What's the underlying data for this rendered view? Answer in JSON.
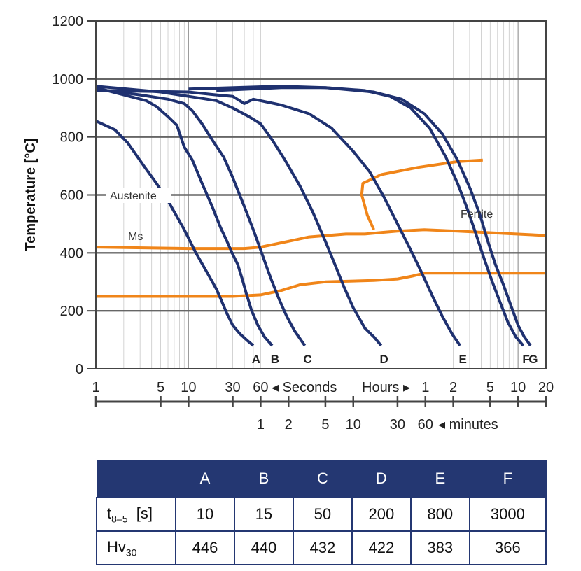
{
  "colors": {
    "cooling": "#1f3170",
    "transform": "#f08519",
    "table_header": "#243772",
    "grid": "#b8b8b8",
    "axis": "#444444"
  },
  "chart_data": {
    "type": "line",
    "ylabel": "Temperature [°C]",
    "ylim": [
      0,
      1200
    ],
    "y_ticks": [
      "0",
      "200",
      "400",
      "600",
      "800",
      "1000",
      "1200"
    ],
    "xscale": "log",
    "xlim_seconds": [
      1,
      72000
    ],
    "x_ticks_seconds": [
      "1",
      "5",
      "10",
      "30",
      "60"
    ],
    "seconds_label": "◂ Seconds",
    "hours_label": "Hours ▸",
    "x_ticks_hours": [
      "1",
      "2",
      "5",
      "10",
      "20"
    ],
    "x_ticks_minutes": [
      "1",
      "2",
      "5",
      "10",
      "30",
      "60"
    ],
    "minutes_label": "◂ minutes",
    "region_labels": [
      "Austenite",
      "Ferrite",
      "Ms"
    ],
    "grid": true,
    "cooling_curves": [
      {
        "name": "A",
        "points": [
          [
            1,
            855
          ],
          [
            1.6,
            825
          ],
          [
            2.2,
            780
          ],
          [
            3.3,
            700
          ],
          [
            4.5,
            640
          ],
          [
            6,
            580
          ],
          [
            9,
            480
          ],
          [
            12,
            400
          ],
          [
            16,
            330
          ],
          [
            20,
            275
          ],
          [
            23,
            230
          ],
          [
            26,
            190
          ],
          [
            30,
            150
          ],
          [
            36,
            120
          ],
          [
            44,
            95
          ],
          [
            50,
            80
          ]
        ]
      },
      {
        "name": "B",
        "points": [
          [
            1,
            970
          ],
          [
            2,
            945
          ],
          [
            3.5,
            925
          ],
          [
            4.5,
            905
          ],
          [
            6,
            870
          ],
          [
            7.5,
            840
          ],
          [
            9,
            765
          ],
          [
            11,
            720
          ],
          [
            14,
            640
          ],
          [
            18,
            560
          ],
          [
            22,
            490
          ],
          [
            26,
            440
          ],
          [
            30,
            395
          ],
          [
            34,
            360
          ],
          [
            38,
            310
          ],
          [
            42,
            260
          ],
          [
            48,
            200
          ],
          [
            56,
            150
          ],
          [
            66,
            110
          ],
          [
            80,
            80
          ]
        ]
      },
      {
        "name": "C",
        "points": [
          [
            1,
            965
          ],
          [
            3,
            945
          ],
          [
            6,
            930
          ],
          [
            9,
            915
          ],
          [
            11,
            890
          ],
          [
            14,
            845
          ],
          [
            18,
            790
          ],
          [
            24,
            730
          ],
          [
            30,
            660
          ],
          [
            40,
            560
          ],
          [
            50,
            480
          ],
          [
            60,
            410
          ],
          [
            70,
            350
          ],
          [
            80,
            300
          ],
          [
            95,
            240
          ],
          [
            115,
            180
          ],
          [
            140,
            130
          ],
          [
            180,
            80
          ]
        ]
      },
      {
        "name": "D",
        "points": [
          [
            1,
            975
          ],
          [
            5,
            955
          ],
          [
            10,
            940
          ],
          [
            20,
            925
          ],
          [
            30,
            900
          ],
          [
            45,
            870
          ],
          [
            60,
            845
          ],
          [
            80,
            790
          ],
          [
            110,
            720
          ],
          [
            160,
            630
          ],
          [
            220,
            540
          ],
          [
            300,
            440
          ],
          [
            380,
            360
          ],
          [
            480,
            280
          ],
          [
            600,
            210
          ],
          [
            800,
            140
          ],
          [
            1000,
            110
          ],
          [
            1200,
            80
          ]
        ]
      },
      {
        "name": "E",
        "points": [
          [
            1,
            960
          ],
          [
            10,
            955
          ],
          [
            20,
            945
          ],
          [
            30,
            940
          ],
          [
            40,
            915
          ],
          [
            50,
            930
          ],
          [
            60,
            925
          ],
          [
            100,
            910
          ],
          [
            200,
            880
          ],
          [
            350,
            830
          ],
          [
            600,
            750
          ],
          [
            900,
            680
          ],
          [
            1300,
            590
          ],
          [
            1800,
            500
          ],
          [
            2500,
            410
          ],
          [
            3300,
            330
          ],
          [
            4300,
            250
          ],
          [
            5500,
            180
          ],
          [
            7000,
            120
          ],
          [
            8500,
            80
          ]
        ]
      },
      {
        "name": "F",
        "points": [
          [
            10,
            965
          ],
          [
            100,
            975
          ],
          [
            300,
            970
          ],
          [
            800,
            960
          ],
          [
            1500,
            940
          ],
          [
            2500,
            900
          ],
          [
            4000,
            830
          ],
          [
            6000,
            730
          ],
          [
            8000,
            640
          ],
          [
            10000,
            560
          ],
          [
            12500,
            470
          ],
          [
            15500,
            380
          ],
          [
            19000,
            300
          ],
          [
            23000,
            230
          ],
          [
            28000,
            160
          ],
          [
            34000,
            110
          ],
          [
            41000,
            80
          ]
        ]
      },
      {
        "name": "G",
        "points": [
          [
            20,
            960
          ],
          [
            100,
            970
          ],
          [
            300,
            970
          ],
          [
            1000,
            955
          ],
          [
            2000,
            930
          ],
          [
            3500,
            880
          ],
          [
            5500,
            810
          ],
          [
            8000,
            720
          ],
          [
            11000,
            620
          ],
          [
            14000,
            530
          ],
          [
            17000,
            440
          ],
          [
            20500,
            360
          ],
          [
            25000,
            290
          ],
          [
            30000,
            220
          ],
          [
            36000,
            150
          ],
          [
            42000,
            110
          ],
          [
            49000,
            80
          ]
        ]
      }
    ],
    "curve_labels": [
      "A",
      "B",
      "C",
      "D",
      "E",
      "F",
      "G"
    ],
    "transformation_lines": [
      {
        "points": [
          [
            1,
            420
          ],
          [
            10,
            415
          ],
          [
            40,
            415
          ],
          [
            60,
            420
          ],
          [
            120,
            440
          ],
          [
            200,
            455
          ],
          [
            500,
            465
          ],
          [
            800,
            465
          ],
          [
            1200,
            470
          ],
          [
            1800,
            475
          ],
          [
            3500,
            480
          ],
          [
            8000,
            475
          ],
          [
            72000,
            460
          ]
        ]
      },
      {
        "points": [
          [
            1,
            250
          ],
          [
            30,
            250
          ],
          [
            60,
            255
          ],
          [
            100,
            270
          ],
          [
            160,
            290
          ],
          [
            300,
            300
          ],
          [
            1000,
            305
          ],
          [
            1800,
            310
          ],
          [
            2600,
            320
          ],
          [
            3500,
            330
          ],
          [
            8000,
            330
          ],
          [
            72000,
            330
          ]
        ]
      },
      {
        "points": [
          [
            1000,
            480
          ],
          [
            850,
            530
          ],
          [
            740,
            600
          ],
          [
            760,
            640
          ],
          [
            1200,
            670
          ],
          [
            3000,
            695
          ],
          [
            8000,
            715
          ],
          [
            15000,
            720
          ]
        ]
      }
    ],
    "table": {
      "columns": [
        "",
        "A",
        "B",
        "C",
        "D",
        "E",
        "F"
      ],
      "rows": [
        {
          "label_main": "t",
          "label_sub": "8–5",
          "label_unit": "[s]",
          "values": [
            "10",
            "15",
            "50",
            "200",
            "800",
            "3000"
          ]
        },
        {
          "label_main": "Hv",
          "label_sub": "30",
          "label_unit": "",
          "values": [
            "446",
            "440",
            "432",
            "422",
            "383",
            "366"
          ]
        }
      ]
    }
  }
}
